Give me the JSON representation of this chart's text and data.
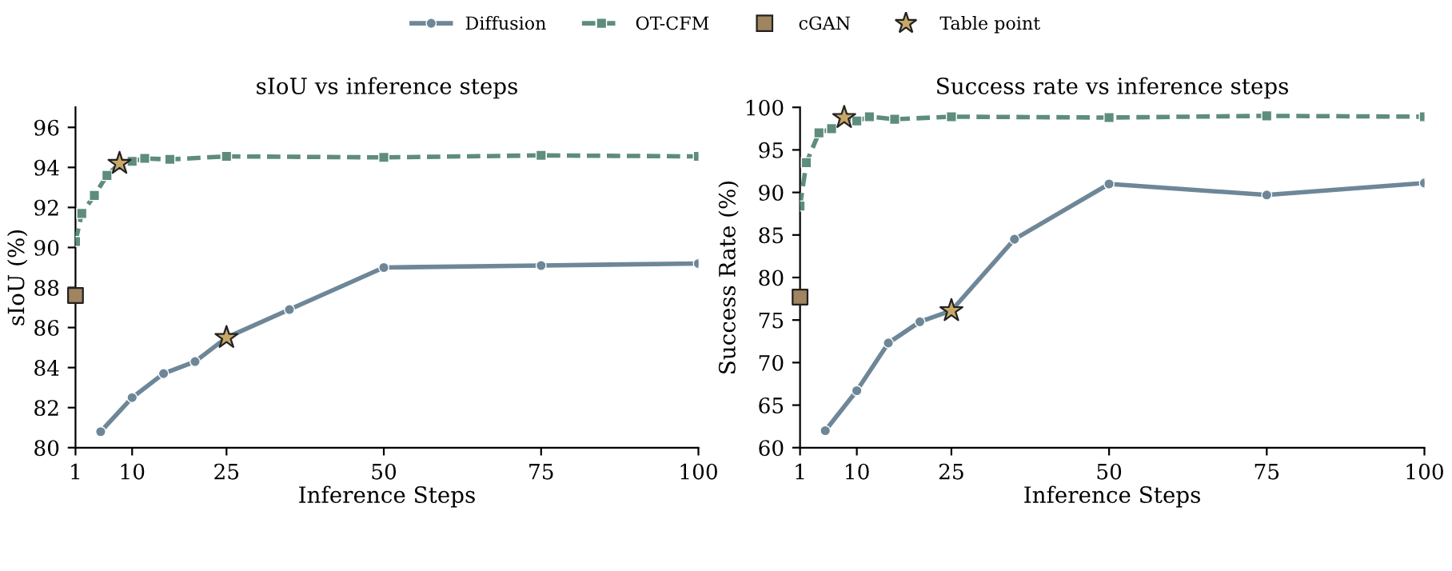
{
  "chart_data": [
    {
      "type": "line",
      "title": "sIoU vs inference steps",
      "xlabel": "Inference Steps",
      "ylabel": "sIoU (%)",
      "xlim": [
        1,
        100
      ],
      "xticks": [
        1,
        10,
        25,
        50,
        75,
        100
      ],
      "ylim": [
        80,
        97
      ],
      "yticks": [
        80,
        82,
        84,
        86,
        88,
        90,
        92,
        94,
        96
      ],
      "grid": false,
      "legend": "top",
      "series": [
        {
          "name": "Diffusion",
          "color": "#6e8798",
          "marker": "circle",
          "line_style": "solid",
          "x": [
            5,
            10,
            15,
            20,
            25,
            35,
            50,
            75,
            100
          ],
          "values": [
            80.8,
            82.5,
            83.7,
            84.3,
            85.5,
            86.9,
            89.0,
            89.1,
            89.2
          ]
        },
        {
          "name": "OT-CFM",
          "color": "#5e8c7e",
          "marker": "square",
          "line_style": "dashed",
          "x": [
            1,
            2,
            4,
            6,
            8,
            10,
            12,
            16,
            25,
            50,
            75,
            100
          ],
          "values": [
            90.3,
            91.7,
            92.6,
            93.6,
            94.2,
            94.3,
            94.45,
            94.4,
            94.55,
            94.5,
            94.6,
            94.55
          ]
        },
        {
          "name": "cGAN",
          "type": "scatter",
          "color": "#a08560",
          "marker": "square",
          "x": [
            1
          ],
          "values": [
            87.6
          ]
        },
        {
          "name": "Table point",
          "type": "scatter",
          "color": "#c8a868",
          "marker": "star",
          "x": [
            8,
            25
          ],
          "values": [
            94.2,
            85.5
          ]
        }
      ]
    },
    {
      "type": "line",
      "title": "Success rate vs inference steps",
      "xlabel": "Inference Steps",
      "ylabel": "Success Rate (%)",
      "xlim": [
        1,
        100
      ],
      "xticks": [
        1,
        10,
        25,
        50,
        75,
        100
      ],
      "ylim": [
        60,
        100
      ],
      "yticks": [
        60,
        65,
        70,
        75,
        80,
        85,
        90,
        95,
        100
      ],
      "grid": false,
      "series": [
        {
          "color": "#6e8798",
          "marker": "circle",
          "line_style": "solid",
          "x": [
            5,
            10,
            15,
            20,
            25,
            35,
            50,
            75,
            100
          ],
          "values": [
            62.0,
            66.7,
            72.3,
            74.8,
            76.1,
            84.5,
            91.0,
            89.7,
            91.1
          ]
        },
        {
          "color": "#5e8c7e",
          "marker": "square",
          "line_style": "dashed",
          "x": [
            1,
            2,
            4,
            6,
            8,
            10,
            12,
            16,
            25,
            50,
            75,
            100
          ],
          "values": [
            88.4,
            93.5,
            97.0,
            97.5,
            98.8,
            98.4,
            98.9,
            98.6,
            98.9,
            98.8,
            99.0,
            98.9
          ]
        },
        {
          "type": "scatter",
          "color": "#a08560",
          "marker": "square",
          "x": [
            1
          ],
          "values": [
            77.7
          ]
        },
        {
          "type": "scatter",
          "color": "#c8a868",
          "marker": "star",
          "x": [
            8,
            25
          ],
          "values": [
            98.8,
            76.1
          ]
        }
      ]
    }
  ]
}
